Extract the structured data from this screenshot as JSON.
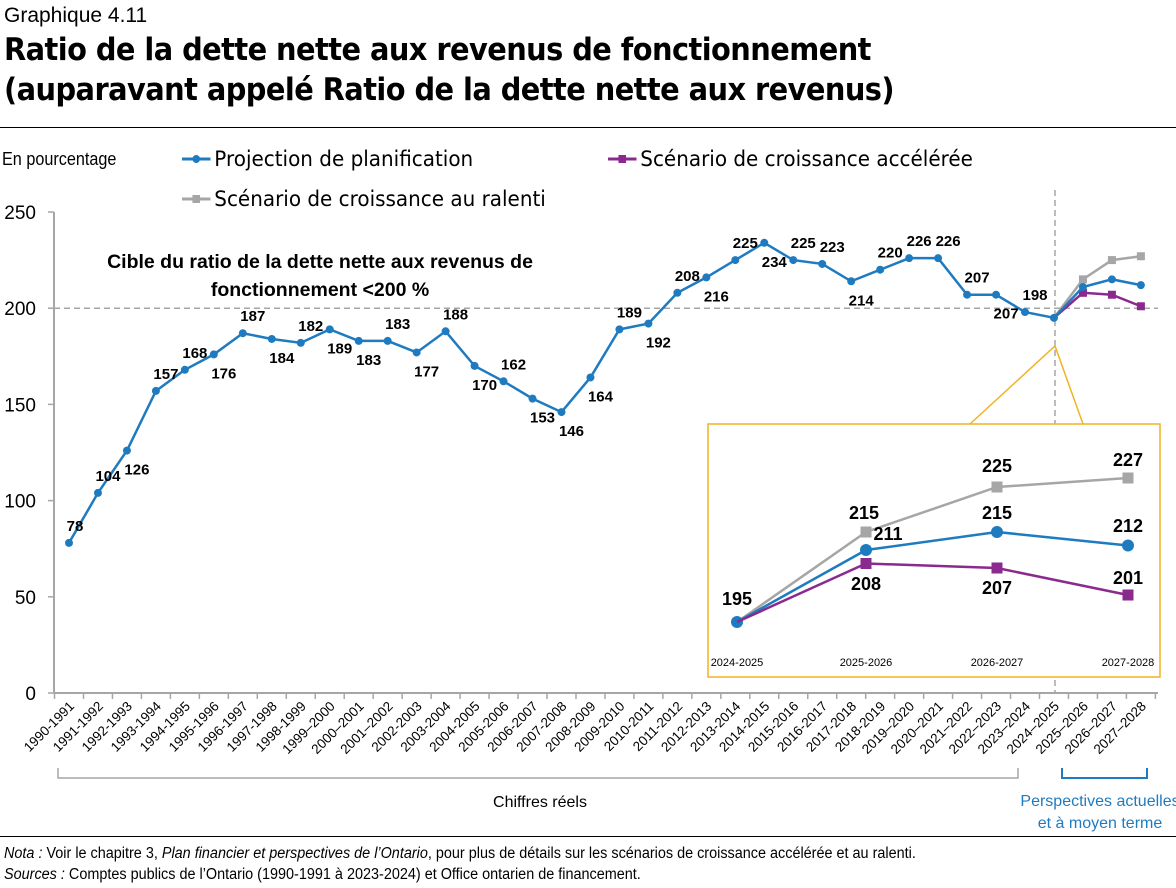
{
  "header": {
    "label": "Graphique 4.11",
    "title_line1": "Ratio de la dette nette aux revenus de fonctionnement",
    "title_line2": "(auparavant appelé Ratio de la dette nette aux revenus)"
  },
  "colors": {
    "planning": "#1f7bc0",
    "fast": "#8b2a8e",
    "slow": "#a6a6a6",
    "callout": "#f0b323",
    "perspective": "#1f7bc0"
  },
  "chart_data": {
    "type": "line",
    "ylabel": "En pourcentage",
    "ylim": [
      0,
      250
    ],
    "yticks": [
      0,
      50,
      100,
      150,
      200,
      250
    ],
    "categories": [
      "1990-1991",
      "1991-1992",
      "1992-1993",
      "1993-1994",
      "1994-1995",
      "1995-1996",
      "1996-1997",
      "1997-1998",
      "1998-1999",
      "1999–2000",
      "2000–2001",
      "2001–2002",
      "2002-2003",
      "2003-2004",
      "2004-2005",
      "2005-2006",
      "2006-2007",
      "2007-2008",
      "2008-2009",
      "2009-2010",
      "2010-2011",
      "2011-2012",
      "2012-2013",
      "2013-2014",
      "2014-2015",
      "2015-2016",
      "2016-2017",
      "2017-2018",
      "2018-2019",
      "2019–2020",
      "2020–2021",
      "2021–2022",
      "2022–2023",
      "2023–2024",
      "2024–2025",
      "2025–2026",
      "2026–2027",
      "2027–2028"
    ],
    "series": [
      {
        "name": "Projection de planification",
        "marker": "circle",
        "values": [
          78,
          104,
          126,
          157,
          168,
          176,
          187,
          184,
          182,
          189,
          183,
          183,
          177,
          188,
          170,
          162,
          153,
          146,
          164,
          189,
          192,
          208,
          216,
          225,
          234,
          225,
          223,
          214,
          220,
          226,
          226,
          207,
          207,
          198,
          195,
          211,
          215,
          212
        ]
      },
      {
        "name": "Scénario de croissance accélérée",
        "marker": "square",
        "values": [
          null,
          null,
          null,
          null,
          null,
          null,
          null,
          null,
          null,
          null,
          null,
          null,
          null,
          null,
          null,
          null,
          null,
          null,
          null,
          null,
          null,
          null,
          null,
          null,
          null,
          null,
          null,
          null,
          null,
          null,
          null,
          null,
          null,
          null,
          195,
          208,
          207,
          201
        ]
      },
      {
        "name": "Scénario de croissance au ralenti",
        "marker": "square",
        "values": [
          null,
          null,
          null,
          null,
          null,
          null,
          null,
          null,
          null,
          null,
          null,
          null,
          null,
          null,
          null,
          null,
          null,
          null,
          null,
          null,
          null,
          null,
          null,
          null,
          null,
          null,
          null,
          null,
          null,
          null,
          null,
          null,
          null,
          null,
          195,
          215,
          225,
          227
        ]
      }
    ],
    "reference_line": {
      "value": 200,
      "label_line1": "Cible du ratio de la dette nette aux revenus de",
      "label_line2": "fonctionnement <200 %"
    },
    "inset": {
      "categories": [
        "2024-2025",
        "2025-2026",
        "2026-2027",
        "2027-2028"
      ],
      "planning": [
        195,
        211,
        215,
        212
      ],
      "fast": [
        195,
        208,
        207,
        201
      ],
      "slow": [
        195,
        215,
        225,
        227
      ]
    },
    "brackets": {
      "actual": "Chiffres réels",
      "outlook_line1": "Perspectives actuelles",
      "outlook_line2": "et à moyen terme"
    },
    "grid": false,
    "legend": "top"
  },
  "notes": {
    "nota_label": "Nota :",
    "nota_pre": " Voir le chapitre 3, ",
    "nota_italic": "Plan financier et perspectives de l’Ontario",
    "nota_post": ", pour plus de détails sur les scénarios de croissance accélérée et au ralenti.",
    "sources_label": "Sources :",
    "sources_text": " Comptes publics de l’Ontario (1990-1991 à 2023-2024) et Office ontarien de financement."
  }
}
